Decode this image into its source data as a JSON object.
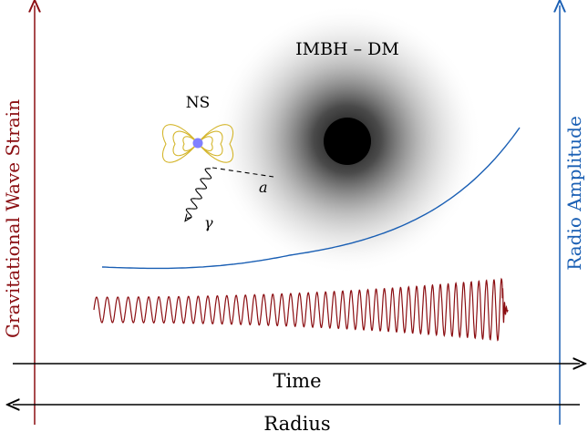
{
  "labels": {
    "left_axis": "Gravitational Wave Strain",
    "right_axis": "Radio Amplitude",
    "bottom_axis_1": "Time",
    "bottom_axis_2": "Radius",
    "cloud": "IMBH – DM",
    "neutron_star": "NS",
    "axion": "a",
    "photon": "γ"
  },
  "colors": {
    "gw": "#8b0e12",
    "radio": "#1a5fb4",
    "ns_field": "#d4b52a",
    "ns_core": "#8080ff",
    "black_hole": "#000000"
  },
  "icons": {
    "black_hole": "black-hole-icon",
    "dm_cloud": "dark-matter-cloud",
    "neutron_star": "neutron-star-icon",
    "photon": "wavy-photon-icon"
  }
}
